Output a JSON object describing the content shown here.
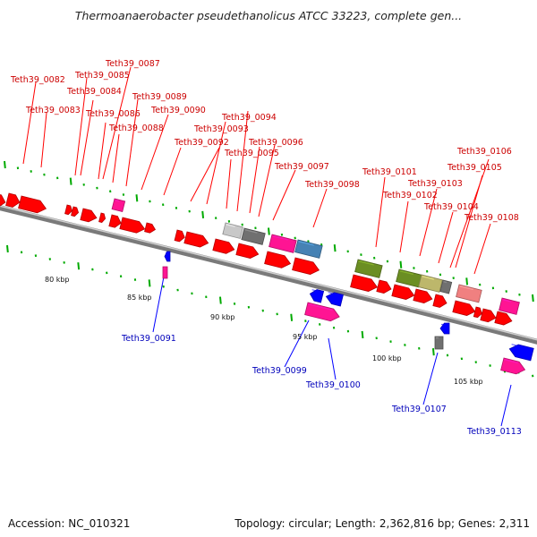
{
  "title": "Thermoanaerobacter pseudethanolicus ATCC 33223, complete gen...",
  "footer": {
    "accession": "Accession: NC_010321",
    "topology": "Topology: circular; Length: 2,362,816 bp; Genes: 2,311"
  },
  "colors": {
    "forward": "#ff0000",
    "reverse": "#0000ff",
    "label_forward": "#cc0000",
    "label_reverse": "#0000bb",
    "backbone": "#888888",
    "tick": "#00aa00",
    "label_line_fwd": "#ff0000",
    "label_line_rev": "#0000ff"
  },
  "scale_labels": [
    "80 kbp",
    "85 kbp",
    "90 kbp",
    "95 kbp",
    "100 kbp",
    "105 kbp"
  ],
  "top_gene_labels": [
    "Teth39_0082",
    "Teth39_0083",
    "Teth39_0084",
    "Teth39_0085",
    "Teth39_0086",
    "Teth39_0087",
    "Teth39_0088",
    "Teth39_0089",
    "Teth39_0090",
    "Teth39_0092",
    "Teth39_0093",
    "Teth39_0094",
    "Teth39_0095",
    "Teth39_0096",
    "Teth39_0097",
    "Teth39_0098",
    "Teth39_0101",
    "Teth39_0102",
    "Teth39_0103",
    "Teth39_0104",
    "Teth39_0105",
    "Teth39_0106",
    "Teth39_0108"
  ],
  "bottom_gene_labels": [
    "Teth39_0091",
    "Teth39_0099",
    "Teth39_0100",
    "Teth39_0107",
    "Teth39_0113"
  ]
}
